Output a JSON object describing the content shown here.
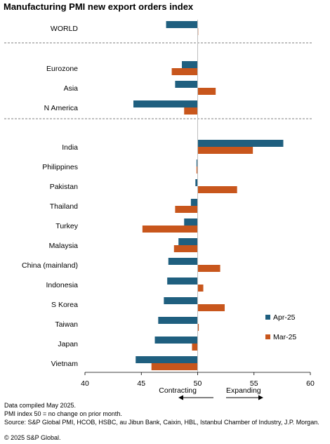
{
  "chart_data": {
    "type": "bar",
    "orientation": "horizontal",
    "title": "Manufacturing PMI new export orders index",
    "baseline": 50,
    "xlim": [
      40,
      60
    ],
    "xticks": [
      40,
      45,
      50,
      55,
      60
    ],
    "grid": false,
    "legend_position": "right",
    "categories": [
      "WORLD",
      "Eurozone",
      "Asia",
      "N America",
      "India",
      "Philippines",
      "Pakistan",
      "Thailand",
      "Turkey",
      "Malaysia",
      "China (mainland)",
      "Indonesia",
      "S Korea",
      "Taiwan",
      "Japan",
      "Vietnam"
    ],
    "groups": [
      {
        "after_index": 0
      },
      {
        "after_index": 3
      }
    ],
    "series": [
      {
        "name": "Apr-25",
        "color": "#1f5f7f",
        "values": [
          47.2,
          48.6,
          48.0,
          44.3,
          57.6,
          49.9,
          49.8,
          49.4,
          48.8,
          48.3,
          47.4,
          47.3,
          47.0,
          46.5,
          46.2,
          44.5
        ]
      },
      {
        "name": "Mar-25",
        "color": "#c8561c",
        "values": [
          50.05,
          47.7,
          51.6,
          48.8,
          54.9,
          49.9,
          53.5,
          48.0,
          45.1,
          47.9,
          52.0,
          50.5,
          52.4,
          50.1,
          49.5,
          45.9
        ]
      }
    ],
    "direction_labels": {
      "left": "Contracting",
      "right": "Expanding"
    },
    "notes": [
      "Data compiled May 2025.",
      "PMI index 50 = no change on prior month.",
      "Source: S&P Global PMI, HCOB, HSBC, au Jibun Bank, Caixin, HBL, Istanbul Chamber of Industry, J.P. Morgan."
    ],
    "copyright": "© 2025 S&P Global."
  }
}
